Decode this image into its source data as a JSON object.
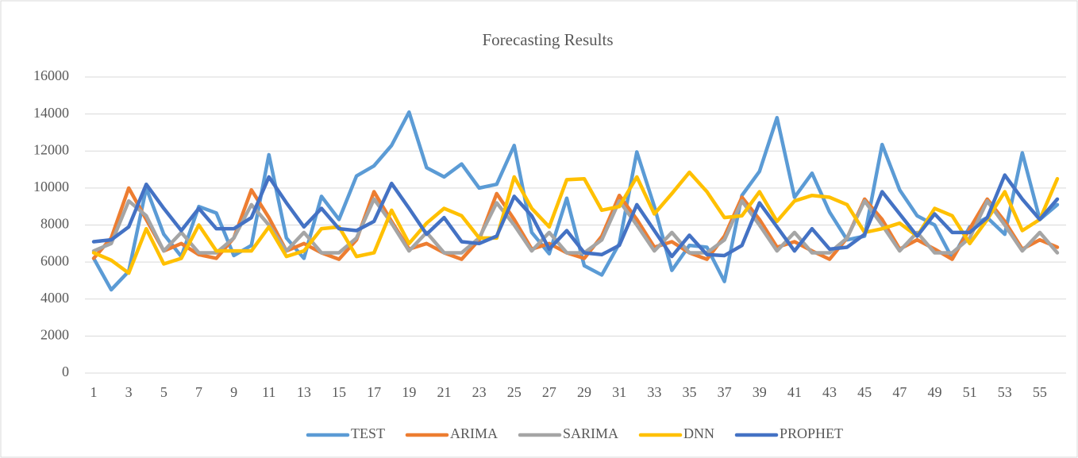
{
  "chart_data": {
    "type": "line",
    "title": "Forecasting Results",
    "categories": [
      "1",
      null,
      "3",
      null,
      "5",
      null,
      "7",
      null,
      "9",
      null,
      "11",
      null,
      "13",
      null,
      "15",
      null,
      "17",
      null,
      "19",
      null,
      "21",
      null,
      "23",
      null,
      "25",
      null,
      "27",
      null,
      "29",
      null,
      "31",
      null,
      "33",
      null,
      "35",
      null,
      "37",
      null,
      "39",
      null,
      "41",
      null,
      "43",
      null,
      "45",
      null,
      "47",
      null,
      "49",
      null,
      "51",
      null,
      "53",
      null,
      "55",
      null
    ],
    "ylim": [
      0,
      16000
    ],
    "yticks": [
      0,
      2000,
      4000,
      6000,
      8000,
      10000,
      12000,
      14000,
      16000
    ],
    "grid": true,
    "legend": "bottom",
    "series": [
      {
        "name": "TEST",
        "color": "#5b9bd5",
        "values": [
          6200,
          4500,
          5500,
          10000,
          7500,
          6300,
          9000,
          8650,
          6350,
          6900,
          11800,
          7300,
          6200,
          9550,
          8300,
          10650,
          11200,
          12300,
          14100,
          11100,
          10600,
          11300,
          10000,
          10200,
          12300,
          7600,
          6450,
          9450,
          5800,
          5300,
          7000,
          11950,
          9000,
          5550,
          6900,
          6800,
          4950,
          9600,
          10900,
          13800,
          9500,
          10800,
          8700,
          7200,
          7400,
          12350,
          9900,
          8500,
          8000,
          6200,
          7900,
          8400,
          7500,
          11900,
          8300,
          9100
        ]
      },
      {
        "name": "ARIMA",
        "color": "#ed7d31",
        "values": [
          6200,
          7300,
          10000,
          8300,
          6600,
          7000,
          6400,
          6200,
          7300,
          9900,
          8400,
          6600,
          7000,
          6500,
          6150,
          7200,
          9800,
          8200,
          6700,
          7000,
          6500,
          6150,
          7200,
          9700,
          8300,
          6700,
          7000,
          6500,
          6200,
          7400,
          9600,
          8300,
          6800,
          7100,
          6500,
          6150,
          7400,
          9500,
          8300,
          6800,
          7100,
          6600,
          6150,
          7300,
          9400,
          8300,
          6700,
          7200,
          6700,
          6150,
          7800,
          9400,
          8200,
          6700,
          7200,
          6800
        ]
      },
      {
        "name": "SARIMA",
        "color": "#a5a5a5",
        "values": [
          6600,
          7000,
          9300,
          8500,
          6600,
          7600,
          6500,
          6500,
          7300,
          9100,
          8000,
          6600,
          7600,
          6500,
          6500,
          7300,
          9400,
          8100,
          6600,
          7600,
          6500,
          6500,
          7300,
          9200,
          8000,
          6600,
          7600,
          6500,
          6500,
          7200,
          9300,
          8000,
          6600,
          7600,
          6500,
          6500,
          7200,
          9300,
          8000,
          6600,
          7600,
          6500,
          6500,
          7300,
          9300,
          8000,
          6600,
          7600,
          6500,
          6500,
          7300,
          9300,
          8000,
          6600,
          7600,
          6500
        ]
      },
      {
        "name": "DNN",
        "color": "#ffc000",
        "values": [
          6500,
          6100,
          5400,
          7800,
          5900,
          6200,
          8000,
          6600,
          6600,
          6600,
          7900,
          6300,
          6600,
          7800,
          7900,
          6300,
          6500,
          8800,
          7000,
          8100,
          8900,
          8500,
          7300,
          7300,
          10600,
          8900,
          7900,
          10450,
          10500,
          8800,
          9000,
          10600,
          8600,
          9700,
          10850,
          9800,
          8400,
          8500,
          9800,
          8200,
          9300,
          9600,
          9500,
          9100,
          7600,
          7800,
          8100,
          7400,
          8900,
          8500,
          7000,
          8300,
          9800,
          7700,
          8300,
          10500
        ]
      },
      {
        "name": "PROPHET",
        "color": "#4472c4",
        "values": [
          7100,
          7200,
          7900,
          10200,
          8900,
          7700,
          8900,
          7800,
          7800,
          8400,
          10600,
          9200,
          7900,
          8900,
          7800,
          7700,
          8200,
          10250,
          8900,
          7500,
          8400,
          7100,
          7000,
          7400,
          9550,
          8500,
          6700,
          7700,
          6500,
          6400,
          6900,
          9100,
          7700,
          6300,
          7450,
          6400,
          6350,
          6900,
          9200,
          7900,
          6600,
          7800,
          6700,
          6800,
          7500,
          9800,
          8600,
          7400,
          8600,
          7600,
          7600,
          8400,
          10700,
          9400,
          8300,
          9400
        ]
      }
    ]
  }
}
